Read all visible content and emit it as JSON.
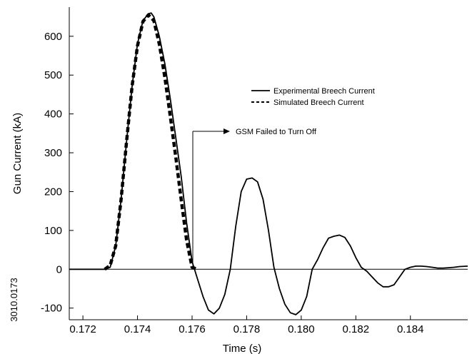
{
  "figure_id": "3010.0173",
  "chart_data": {
    "type": "line",
    "xlabel": "Time  (s)",
    "ylabel": "Gun Current (kA)",
    "xlim": [
      0.1715,
      0.1861
    ],
    "ylim": [
      -130,
      675
    ],
    "x_ticks": [
      0.172,
      0.174,
      0.176,
      0.178,
      0.18,
      0.182,
      0.184
    ],
    "x_tick_labels": [
      "0.172",
      "0.174",
      "0.176",
      "0.178",
      "0.180",
      "0.182",
      "0.184"
    ],
    "y_ticks": [
      -100,
      0,
      100,
      200,
      300,
      400,
      500,
      600
    ],
    "y_tick_labels": [
      "-100",
      "0",
      "100",
      "200",
      "300",
      "400",
      "500",
      "600"
    ],
    "zero_line": true,
    "grid": false,
    "legend_position": "upper-right",
    "series": [
      {
        "name": "Experimental Breech Current",
        "style": "solid",
        "color": "#000000",
        "x": [
          0.1715,
          0.172,
          0.1725,
          0.1728,
          0.173,
          0.1732,
          0.1734,
          0.1736,
          0.1738,
          0.174,
          0.1742,
          0.1744,
          0.1745,
          0.1746,
          0.1748,
          0.175,
          0.1752,
          0.1754,
          0.1756,
          0.1758,
          0.176,
          0.1762,
          0.1764,
          0.1766,
          0.1768,
          0.177,
          0.1772,
          0.1774,
          0.1776,
          0.1778,
          0.178,
          0.1782,
          0.1784,
          0.1786,
          0.1788,
          0.179,
          0.1792,
          0.1794,
          0.1796,
          0.1798,
          0.18,
          0.1802,
          0.1804,
          0.1806,
          0.1808,
          0.181,
          0.1812,
          0.1814,
          0.1816,
          0.1818,
          0.182,
          0.1822,
          0.1824,
          0.1826,
          0.1828,
          0.183,
          0.1832,
          0.1834,
          0.1836,
          0.1838,
          0.184,
          0.1842,
          0.1844,
          0.1846,
          0.1848,
          0.185,
          0.1852,
          0.1854,
          0.1856,
          0.1858,
          0.1861
        ],
        "y": [
          0,
          0,
          0,
          0,
          5,
          60,
          180,
          330,
          470,
          580,
          640,
          658,
          660,
          650,
          600,
          530,
          440,
          340,
          240,
          120,
          20,
          -25,
          -70,
          -105,
          -115,
          -100,
          -65,
          0,
          110,
          200,
          232,
          235,
          225,
          180,
          100,
          5,
          -50,
          -90,
          -112,
          -117,
          -105,
          -70,
          0,
          25,
          55,
          80,
          85,
          88,
          82,
          60,
          30,
          5,
          -5,
          -20,
          -35,
          -45,
          -45,
          -40,
          -20,
          0,
          5,
          8,
          8,
          7,
          5,
          3,
          3,
          4,
          5,
          7,
          8
        ]
      },
      {
        "name": "Simulated Breech Current",
        "style": "dashed",
        "color": "#000000",
        "x": [
          0.1728,
          0.173,
          0.1732,
          0.1734,
          0.1736,
          0.1738,
          0.174,
          0.1742,
          0.1744,
          0.1746,
          0.1748,
          0.175,
          0.1752,
          0.1754,
          0.1756,
          0.1758,
          0.176,
          0.1762
        ],
        "y": [
          0,
          10,
          60,
          180,
          330,
          470,
          575,
          638,
          655,
          640,
          580,
          495,
          395,
          290,
          180,
          75,
          5,
          0
        ]
      }
    ],
    "annotations": [
      {
        "text": "GSM Failed to Turn Off",
        "x": 0.1762,
        "y": 0
      }
    ]
  }
}
